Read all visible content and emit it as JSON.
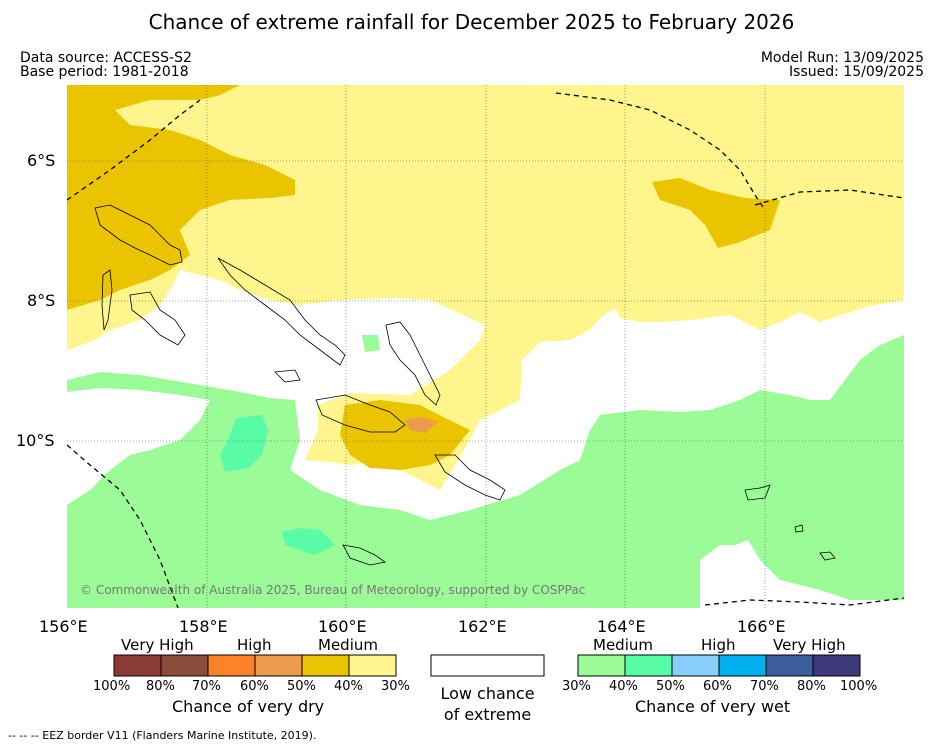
{
  "header": {
    "title": "Chance of extreme rainfall for December 2025 to February 2026",
    "data_source": "Data source: ACCESS-S2",
    "base_period": "Base period: 1981-2018",
    "model_run": "Model Run: 13/09/2025",
    "issued": "Issued: 15/09/2025"
  },
  "map": {
    "latitude_labels": [
      "6°S",
      "8°S",
      "10°S"
    ],
    "longitude_labels": [
      "156°E",
      "158°E",
      "160°E",
      "162°E",
      "164°E",
      "166°E"
    ],
    "copyright": "© Commonwealth of Australia 2025, Bureau of Meteorology, supported by COSPPac"
  },
  "legend": {
    "dry": {
      "headings": [
        "Very High",
        "High",
        "Medium"
      ],
      "colors": [
        "#8b3a34",
        "#8c4e3c",
        "#ff8228",
        "#ec9b4c",
        "#ebc400",
        "#fef58d"
      ],
      "percent_labels": [
        "100%",
        "80%",
        "70%",
        "60%",
        "50%",
        "40%",
        "30%"
      ],
      "caption": "Chance of very dry"
    },
    "low": {
      "color": "#ffffff",
      "caption_line1": "Low chance",
      "caption_line2": "of extreme"
    },
    "wet": {
      "headings": [
        "Medium",
        "High",
        "Very High"
      ],
      "colors": [
        "#9bfb96",
        "#58fca7",
        "#87cefa",
        "#00b0f0",
        "#3b5d9b",
        "#3e3a7a"
      ],
      "percent_labels": [
        "30%",
        "40%",
        "50%",
        "60%",
        "70%",
        "80%",
        "100%"
      ],
      "caption": "Chance of very wet"
    }
  },
  "footnote": "--  --  -- EEZ border V11 (Flanders Marine Institute, 2019)."
}
